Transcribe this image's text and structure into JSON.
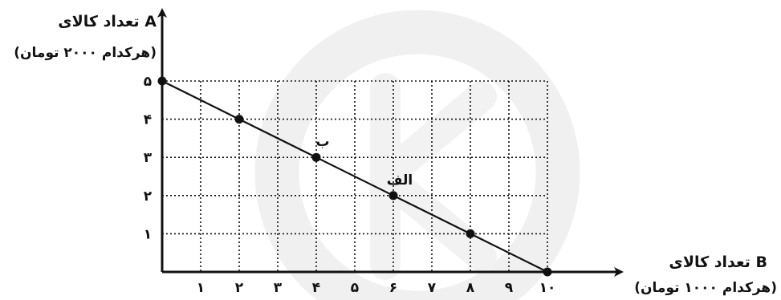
{
  "chart_data": {
    "type": "line",
    "title": "",
    "y_axis": {
      "label_line1": "تعداد کالای A",
      "label_line2": "(هرکدام ۲۰۰۰ تومان)",
      "range": [
        0,
        5
      ],
      "ticks": [
        {
          "value": 1,
          "label": "۱"
        },
        {
          "value": 2,
          "label": "۲"
        },
        {
          "value": 3,
          "label": "۳"
        },
        {
          "value": 4,
          "label": "۴"
        },
        {
          "value": 5,
          "label": "۵"
        }
      ]
    },
    "x_axis": {
      "label_line1": "تعداد کالای B",
      "label_line2": "(هرکدام ۱۰۰۰ تومان)",
      "range": [
        0,
        10
      ],
      "ticks": [
        {
          "value": 1,
          "label": "۱"
        },
        {
          "value": 2,
          "label": "۲"
        },
        {
          "value": 3,
          "label": "۳"
        },
        {
          "value": 4,
          "label": "۴"
        },
        {
          "value": 5,
          "label": "۵"
        },
        {
          "value": 6,
          "label": "۶"
        },
        {
          "value": 7,
          "label": "۷"
        },
        {
          "value": 8,
          "label": "۸"
        },
        {
          "value": 9,
          "label": "۹"
        },
        {
          "value": 10,
          "label": "۱۰"
        }
      ]
    },
    "grid": "dotted",
    "series": [
      {
        "x": [
          0,
          2,
          4,
          6,
          8,
          10
        ],
        "y": [
          5,
          4,
          3,
          2,
          1,
          0
        ]
      }
    ],
    "point_labels": [
      {
        "x": 4,
        "y": 3,
        "text": "ب"
      },
      {
        "x": 6,
        "y": 2,
        "text": "الف"
      }
    ],
    "colors": {
      "ink": "#111111",
      "watermark": "#e6e6e6"
    }
  }
}
